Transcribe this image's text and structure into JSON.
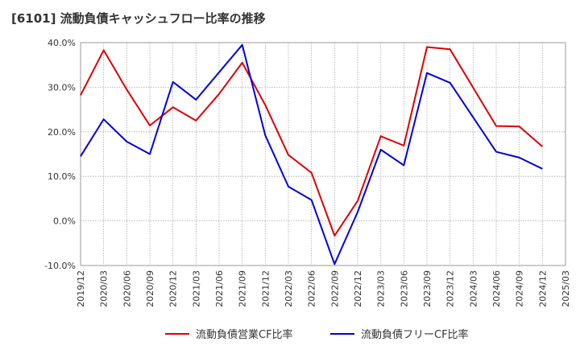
{
  "chart_data": {
    "type": "line",
    "title": "[6101]  流動負債キャッシュフロー比率の推移",
    "xlabel": "",
    "ylabel": "",
    "ylim": [
      -10,
      40
    ],
    "yticks": [
      "-10.0%",
      "0.0%",
      "10.0%",
      "20.0%",
      "30.0%",
      "40.0%"
    ],
    "ytick_values": [
      -10,
      0,
      10,
      20,
      30,
      40
    ],
    "categories": [
      "2019/12",
      "2020/03",
      "2020/06",
      "2020/09",
      "2020/12",
      "2021/03",
      "2021/06",
      "2021/09",
      "2021/12",
      "2022/03",
      "2022/06",
      "2022/09",
      "2022/12",
      "2023/03",
      "2023/06",
      "2023/09",
      "2023/12",
      "2024/03",
      "2024/06",
      "2024/09",
      "2024/12",
      "2025/03"
    ],
    "grid": true,
    "legend_placement": "bottom",
    "series": [
      {
        "name": "流動負債営業CF比率",
        "color": "#dd0000",
        "values": [
          28.2,
          38.3,
          29.5,
          21.4,
          25.5,
          22.5,
          28.5,
          35.5,
          26.0,
          14.8,
          10.8,
          -3.3,
          4.5,
          19.0,
          16.9,
          39.0,
          38.5,
          null,
          21.3,
          21.2,
          16.7,
          null
        ]
      },
      {
        "name": "流動負債フリーCF比率",
        "color": "#0000dd",
        "values": [
          14.5,
          22.8,
          17.8,
          15.0,
          31.2,
          27.2,
          null,
          39.5,
          19.2,
          7.7,
          4.7,
          -9.7,
          2.0,
          16.0,
          12.5,
          33.2,
          31.0,
          null,
          15.5,
          14.2,
          11.7,
          null
        ]
      }
    ]
  }
}
